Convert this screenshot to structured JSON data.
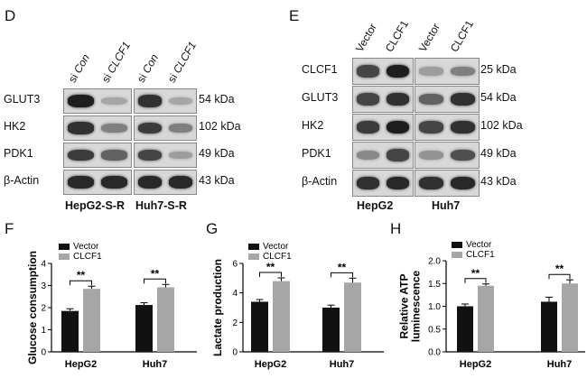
{
  "panel_D": {
    "label": "D",
    "columns": [
      {
        "prefix": "si ",
        "name": "Con"
      },
      {
        "prefix": "si ",
        "name": "CLCF1"
      },
      {
        "prefix": "si ",
        "name": "Con"
      },
      {
        "prefix": "si ",
        "name": "CLCF1"
      }
    ],
    "rows": [
      "GLUT3",
      "HK2",
      "PDK1",
      "β-Actin"
    ],
    "kda": [
      "54 kDa",
      "102 kDa",
      "49 kDa",
      "43 kDa"
    ],
    "cells": [
      "HepG2-S-R",
      "Huh7-S-R"
    ],
    "intensity": [
      [
        0.95,
        0.25,
        0.85,
        0.25
      ],
      [
        0.85,
        0.45,
        0.8,
        0.45
      ],
      [
        0.8,
        0.6,
        0.75,
        0.3
      ],
      [
        0.9,
        0.9,
        0.9,
        0.9
      ]
    ]
  },
  "panel_E": {
    "label": "E",
    "columns": [
      "Vector",
      "CLCF1",
      "Vector",
      "CLCF1"
    ],
    "rows": [
      "CLCF1",
      "GLUT3",
      "HK2",
      "PDK1",
      "β-Actin"
    ],
    "kda": [
      "25 kDa",
      "54 kDa",
      "102 kDa",
      "49 kDa",
      "43 kDa"
    ],
    "cells": [
      "HepG2",
      "Huh7"
    ],
    "intensity": [
      [
        0.75,
        0.95,
        0.3,
        0.45
      ],
      [
        0.75,
        0.85,
        0.6,
        0.85
      ],
      [
        0.8,
        0.95,
        0.75,
        0.85
      ],
      [
        0.4,
        0.75,
        0.35,
        0.7
      ],
      [
        0.85,
        0.9,
        0.85,
        0.9
      ]
    ]
  },
  "chart_data": [
    {
      "panel": "F",
      "type": "bar",
      "ylabel": "Glucose consumption",
      "categories": [
        "HepG2",
        "Huh7"
      ],
      "ylim": [
        0,
        4
      ],
      "yticks": [
        "0",
        "1",
        "2",
        "3",
        "4"
      ],
      "series": [
        {
          "name": "Vector",
          "color": "#111111",
          "values": [
            1.85,
            2.12
          ],
          "errors": [
            0.1,
            0.1
          ]
        },
        {
          "name": "CLCF1",
          "color": "#a6a6a6",
          "values": [
            2.85,
            2.92
          ],
          "errors": [
            0.12,
            0.13
          ]
        }
      ],
      "significance": [
        "**",
        "**"
      ]
    },
    {
      "panel": "G",
      "type": "bar",
      "ylabel": "Lactate production",
      "categories": [
        "HepG2",
        "Huh7"
      ],
      "ylim": [
        0,
        6
      ],
      "yticks": [
        "0",
        "2",
        "4",
        "6"
      ],
      "series": [
        {
          "name": "Vector",
          "color": "#111111",
          "values": [
            3.4,
            3.0
          ],
          "errors": [
            0.15,
            0.17
          ]
        },
        {
          "name": "CLCF1",
          "color": "#a6a6a6",
          "values": [
            4.8,
            4.7
          ],
          "errors": [
            0.22,
            0.3
          ]
        }
      ],
      "significance": [
        "**",
        "**"
      ]
    },
    {
      "panel": "H",
      "type": "bar",
      "ylabel": [
        "Relative ATP",
        "luminescence"
      ],
      "categories": [
        "HepG2",
        "Huh7"
      ],
      "ylim": [
        0,
        2.0
      ],
      "yticks": [
        "0.0",
        "0.5",
        "1.0",
        "1.5",
        "2.0"
      ],
      "series": [
        {
          "name": "Vector",
          "color": "#111111",
          "values": [
            1.0,
            1.1
          ],
          "errors": [
            0.05,
            0.1
          ]
        },
        {
          "name": "CLCF1",
          "color": "#a6a6a6",
          "values": [
            1.45,
            1.5
          ],
          "errors": [
            0.04,
            0.08
          ]
        }
      ],
      "significance": [
        "**",
        "**"
      ]
    }
  ]
}
